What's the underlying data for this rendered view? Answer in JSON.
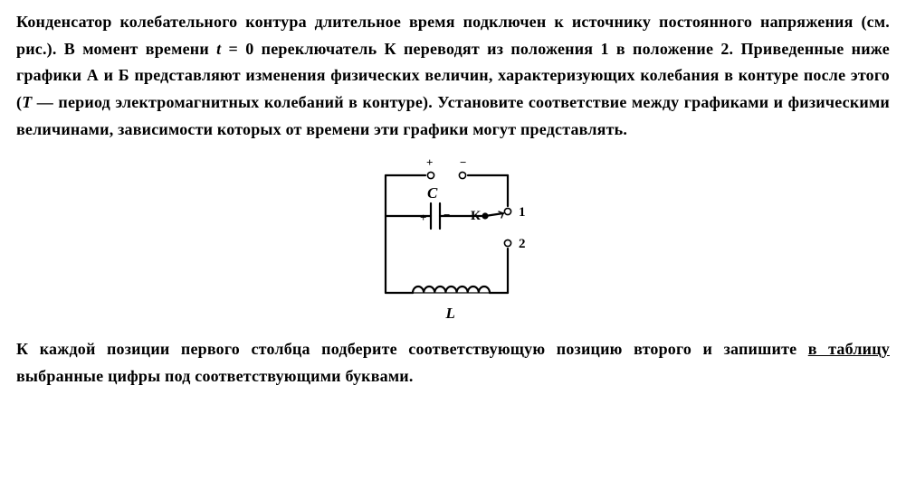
{
  "colors": {
    "text": "#000000",
    "bg": "#ffffff",
    "stroke": "#000000"
  },
  "font": {
    "family": "Times New Roman",
    "size_pt": 14,
    "weight": "bold"
  },
  "paragraph1_parts": [
    {
      "t": "Конденсатор колебательного контура длительное время подключен к источнику постоянного напряжения (см. рис.). В момент времени "
    },
    {
      "t": "t",
      "i": true
    },
    {
      "t": " = 0 переключатель К переводят из положения 1 в положение 2. Приведенные ниже графики А и Б представляют изменения физических величин, характеризующих колебания в контуре после этого ("
    },
    {
      "t": "T",
      "i": true
    },
    {
      "t": " — период электромагнитных колебаний в контуре). Установите соответствие между графиками и физическими величинами, зависимости которых от времени эти графики могут представлять."
    }
  ],
  "paragraph2_parts": [
    {
      "t": "К каждой позиции первого столбца подберите соответствующую позицию второго и запишите "
    },
    {
      "t": "в таблицу",
      "u": true
    },
    {
      "t": " выбранные цифры под соответствующими буквами."
    }
  ],
  "circuit": {
    "labels": {
      "plus": "+",
      "minus": "−",
      "C": "C",
      "K": "К",
      "one": "1",
      "two": "2",
      "L": "L",
      "cap_plus": "+",
      "cap_minus": "−"
    },
    "stroke_width_main": 2.2,
    "stroke_width_thin": 1.6,
    "node_radius": 3.2,
    "terminal_radius": 3.6,
    "font_size_label": 17,
    "font_size_small": 13,
    "inductor": {
      "coils": 7,
      "coil_radius": 7
    }
  }
}
